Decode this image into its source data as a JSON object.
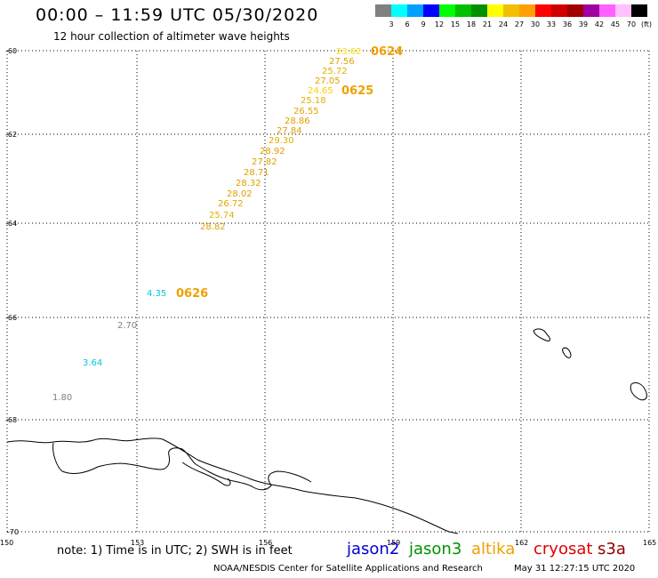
{
  "title": "00:00 – 11:59 UTC 05/30/2020",
  "subtitle": "12 hour collection of altimeter wave heights",
  "scale": {
    "unit": "(ft)",
    "colors": [
      "#808080",
      "#00ffff",
      "#00a0ff",
      "#0000ff",
      "#00ff00",
      "#00c000",
      "#009000",
      "#ffff00",
      "#f0c000",
      "#ffa000",
      "#ff0000",
      "#d00000",
      "#a00000",
      "#a000a0",
      "#ff60ff",
      "#ffc0ff",
      "#000000"
    ],
    "labels": [
      "3",
      "6",
      "9",
      "12",
      "15",
      "18",
      "21",
      "24",
      "27",
      "30",
      "33",
      "36",
      "39",
      "42",
      "45",
      "70"
    ]
  },
  "lat_labels": [
    "-60",
    "-62",
    "-64",
    "-66",
    "-68",
    "-70"
  ],
  "lon_labels": [
    "150",
    "153",
    "156",
    "159",
    "162",
    "165"
  ],
  "readings": [
    {
      "v": "23.62",
      "c": "#ffe000"
    },
    {
      "v": "27.56",
      "c": "#e0a000"
    },
    {
      "v": "25.72",
      "c": "#e0b000"
    },
    {
      "v": "27.05",
      "c": "#e0a000"
    },
    {
      "v": "24.65",
      "c": "#ffd000"
    },
    {
      "v": "25.18",
      "c": "#e0b000"
    },
    {
      "v": "26.55",
      "c": "#e0a800"
    },
    {
      "v": "28.86",
      "c": "#e0a000"
    },
    {
      "v": "27.84",
      "c": "#e0a000"
    },
    {
      "v": "29.30",
      "c": "#e0b000"
    },
    {
      "v": "28.92",
      "c": "#e0a000"
    },
    {
      "v": "27.82",
      "c": "#e0a000"
    },
    {
      "v": "28.71",
      "c": "#e0a000"
    },
    {
      "v": "28.32",
      "c": "#e0a000"
    },
    {
      "v": "28.02",
      "c": "#e0a000"
    },
    {
      "v": "26.72",
      "c": "#e0a800"
    },
    {
      "v": "25.74",
      "c": "#e0b000"
    },
    {
      "v": "28.82",
      "c": "#e0a000"
    },
    {
      "v": "4.35",
      "c": "#00c8d8"
    },
    {
      "v": "2.70",
      "c": "#808080"
    },
    {
      "v": "3.64",
      "c": "#00c8d8"
    },
    {
      "v": "1.80",
      "c": "#808080"
    }
  ],
  "pass_labels": [
    {
      "text": "0624",
      "color": "#f0a000"
    },
    {
      "text": "0625",
      "color": "#f0a000"
    },
    {
      "text": "0626",
      "color": "#f0a000"
    }
  ],
  "note": "note: 1) Time is in UTC; 2) SWH is in feet",
  "satellites": [
    {
      "name": "jason2",
      "color": "#0000d0"
    },
    {
      "name": "jason3",
      "color": "#009000"
    },
    {
      "name": "altika",
      "color": "#f0a000"
    },
    {
      "name": "cryosat",
      "color": "#e00000"
    },
    {
      "name": "s3a",
      "color": "#900000"
    }
  ],
  "credit": "NOAA/NESDIS Center for Satellite Applications and Research",
  "timestamp": "May 31 12:27:15 UTC 2020"
}
